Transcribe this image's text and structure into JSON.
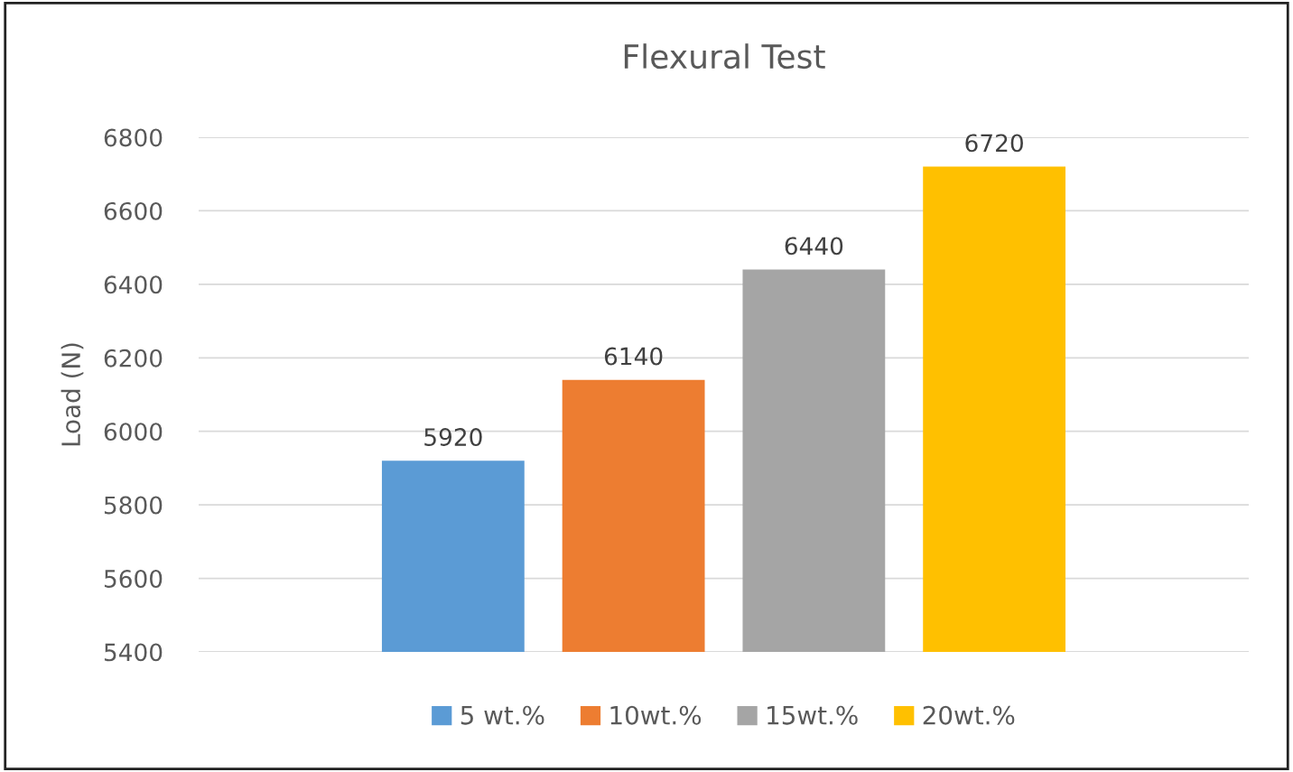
{
  "chart_data": {
    "type": "bar",
    "title": "Flexural Test",
    "ylabel": "Load (N)",
    "categories": [
      null
    ],
    "series": [
      {
        "name": "5 wt.%",
        "color": "#5b9bd5",
        "values": [
          5920
        ]
      },
      {
        "name": "10wt.%",
        "color": "#ed7d31",
        "values": [
          6140
        ]
      },
      {
        "name": "15wt.%",
        "color": "#a5a5a5",
        "values": [
          6440
        ]
      },
      {
        "name": "20wt.%",
        "color": "#ffc000",
        "values": [
          6720
        ]
      }
    ],
    "ylim": [
      5400,
      6800
    ],
    "yticks": [
      5400,
      5600,
      5800,
      6000,
      6200,
      6400,
      6600,
      6800
    ],
    "grid": "y",
    "legend": "bottom",
    "data_labels": true
  }
}
